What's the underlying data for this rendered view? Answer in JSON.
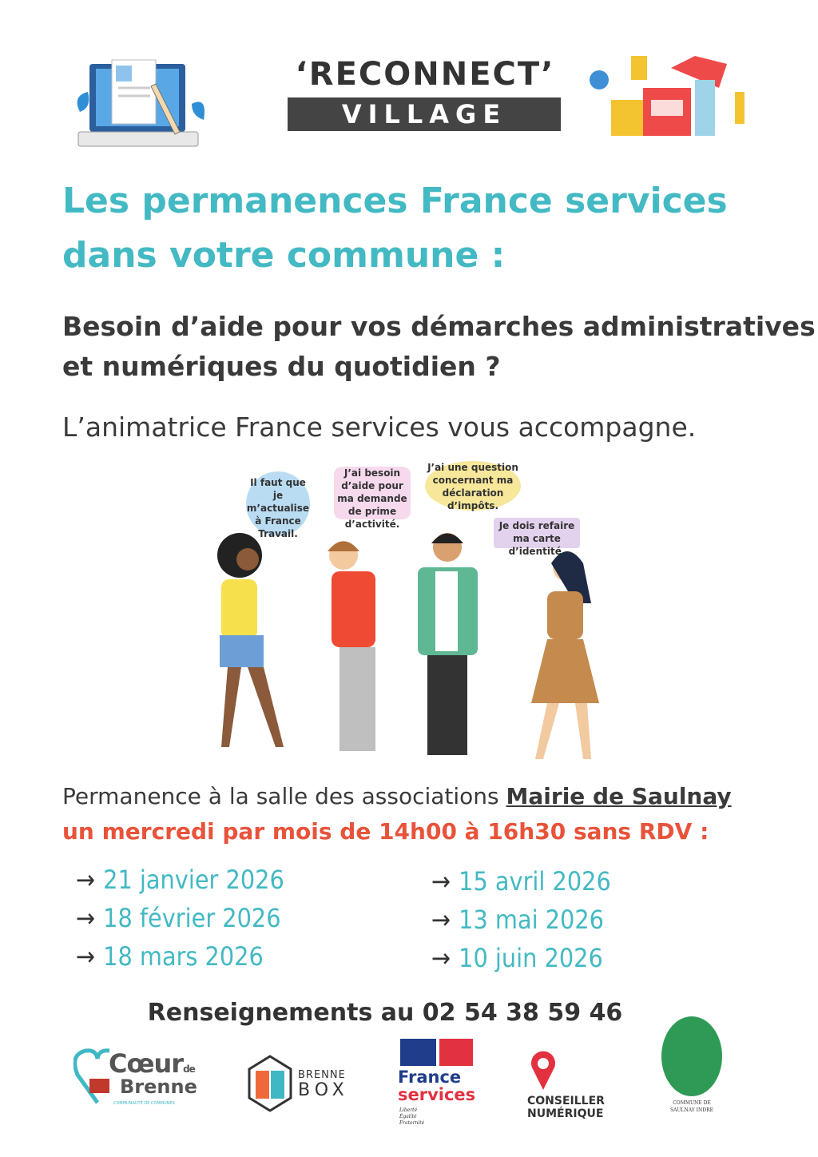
{
  "header": {
    "title_line1": "‘RECONNECT’",
    "title_line2": "VILLAGE"
  },
  "heading": {
    "line1": "Les permanences France services",
    "line2": "dans votre commune :"
  },
  "subheading": {
    "line1": "Besoin d’aide pour vos démarches administratives",
    "line2": "et numériques du quotidien ?"
  },
  "lead": "L’animatrice France services vous accompagne.",
  "bubbles": [
    {
      "text": "Il faut que je m’actualise à France Travail.",
      "color": "#b9dcf2"
    },
    {
      "text": "J’ai besoin d’aide pour ma demande de prime d’activité.",
      "color": "#f6d9ec"
    },
    {
      "text": "J’ai une question concernant ma déclaration d’impôts.",
      "color": "#f7e79a"
    },
    {
      "text": "Je dois refaire ma carte d’identité.",
      "color": "#e3d2ee"
    }
  ],
  "permanence": {
    "prefix": "Permanence à la salle des associations ",
    "place": "Mairie de Saulnay",
    "schedule": "un mercredi par mois de 14h00 à 16h30 sans RDV :"
  },
  "arrow": "→",
  "dates_left": [
    "21 janvier 2026",
    "18 février 2026",
    "18 mars 2026"
  ],
  "dates_right": [
    "15 avril 2026",
    "13 mai 2026",
    "10 juin 2026"
  ],
  "info": "Renseignements au 02 54 38 59 46",
  "logos": {
    "coeur": {
      "line1": "Cœur",
      "de": "de",
      "line2": "Brenne",
      "sub": "COMMUNAUTÉ DE COMMUNES"
    },
    "brennebox": {
      "line1": "BRENNE",
      "line2": "BOX"
    },
    "franceservices": {
      "line1": "France",
      "line2": "services",
      "motto": "Liberté Égalité Fraternité"
    },
    "conseiller": {
      "line1": "CONSEILLER",
      "line2": "NUMÉRIQUE"
    },
    "saulnay": {
      "text": "COMMUNE DE SAULNAY INDRE"
    }
  },
  "colors": {
    "teal": "#43b9c3",
    "accent": "#e8533a",
    "dark": "#444444"
  }
}
